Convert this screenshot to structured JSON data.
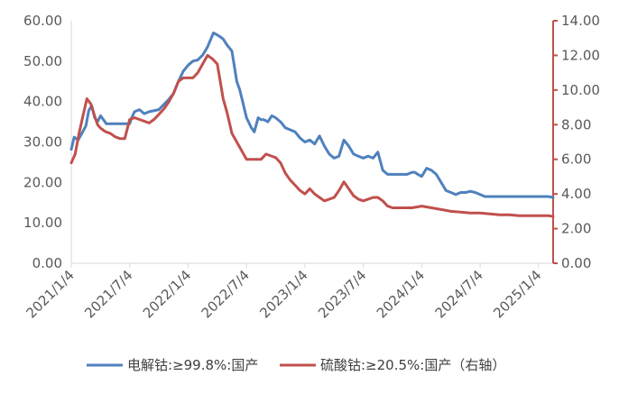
{
  "chart_data": {
    "type": "line",
    "title": "",
    "xlabel": "",
    "ylabel": "",
    "x_tick_labels": [
      "2021/1/4",
      "2021/7/4",
      "2022/1/4",
      "2022/7/4",
      "2023/1/4",
      "2023/7/4",
      "2024/1/4",
      "2024/7/4",
      "2025/1/4"
    ],
    "x_range": [
      0,
      49.5
    ],
    "y_left": {
      "ylim": [
        0,
        60
      ],
      "ticks": [
        "0.00",
        "10.00",
        "20.00",
        "30.00",
        "40.00",
        "50.00",
        "60.00"
      ],
      "color": "#404040"
    },
    "y_right": {
      "ylim": [
        0,
        14
      ],
      "ticks": [
        "0.00",
        "2.00",
        "4.00",
        "6.00",
        "8.00",
        "10.00",
        "12.00",
        "14.00"
      ],
      "color": "#C0504D"
    },
    "legend_position": "bottom",
    "series": [
      {
        "name": "电解钴:≥99.8%:国产",
        "axis": "left",
        "color": "#4F81BD",
        "x": [
          0,
          0.3,
          0.7,
          1.1,
          1.5,
          1.8,
          2.1,
          2.4,
          2.7,
          3.0,
          3.3,
          3.6,
          4.0,
          5.0,
          6.0,
          6.2,
          6.5,
          7.0,
          7.5,
          8.0,
          9.0,
          10.0,
          10.5,
          11.0,
          11.5,
          12.0,
          12.5,
          13.0,
          13.5,
          14.0,
          14.6,
          15.0,
          15.3,
          15.6,
          16.0,
          16.5,
          17.0,
          17.3,
          17.6,
          18.0,
          18.5,
          18.8,
          19.2,
          19.5,
          19.8,
          20.2,
          20.6,
          21.0,
          21.5,
          22.0,
          22.5,
          23.0,
          23.5,
          24.0,
          24.5,
          25.0,
          25.5,
          26.0,
          26.5,
          27.0,
          27.5,
          28.0,
          28.5,
          29.0,
          29.5,
          30.0,
          30.5,
          31.0,
          31.5,
          32.0,
          32.5,
          33.0,
          33.5,
          34.0,
          34.5,
          35.0,
          35.3,
          35.6,
          36.0,
          36.5,
          37.0,
          37.5,
          38.0,
          38.5,
          39.0,
          39.5,
          40.0,
          40.5,
          41.0,
          41.5,
          42.0,
          42.5,
          43.0,
          43.5,
          44.0,
          44.5,
          45.0,
          45.5,
          46.0,
          46.5,
          47.0,
          47.5,
          48.0,
          48.5,
          49.0,
          49.5
        ],
        "values": [
          28.2,
          31.2,
          30.5,
          32.2,
          34.0,
          37.8,
          39.0,
          36.0,
          35.0,
          36.5,
          35.5,
          34.5,
          34.5,
          34.5,
          34.5,
          36.0,
          37.5,
          38.0,
          37.0,
          37.5,
          38.0,
          40.5,
          42.0,
          45.0,
          47.5,
          49.0,
          50.0,
          50.3,
          51.5,
          53.5,
          57.0,
          56.5,
          56.0,
          55.5,
          54.0,
          52.5,
          45.0,
          43.0,
          40.0,
          36.0,
          33.5,
          32.5,
          36.0,
          35.5,
          35.5,
          35.0,
          36.5,
          36.0,
          35.0,
          33.5,
          33.0,
          32.5,
          31.0,
          30.0,
          30.5,
          29.5,
          31.5,
          29.0,
          27.0,
          26.0,
          26.5,
          30.5,
          29.0,
          27.0,
          26.5,
          26.0,
          26.5,
          26.0,
          27.5,
          23.0,
          22.0,
          22.0,
          22.0,
          22.0,
          22.0,
          22.5,
          22.5,
          22.0,
          21.5,
          23.5,
          23.0,
          22.0,
          20.0,
          18.0,
          17.5,
          17.0,
          17.5,
          17.5,
          17.8,
          17.5,
          17.0,
          16.5,
          16.5,
          16.5,
          16.5,
          16.5,
          16.5,
          16.5,
          16.5,
          16.5,
          16.5,
          16.5,
          16.5,
          16.5,
          16.5,
          16.3
        ]
      },
      {
        "name": "硫酸钴:≥20.5%:国产（右轴）",
        "axis": "right",
        "color": "#C0504D",
        "x": [
          0,
          0.4,
          0.8,
          1.2,
          1.6,
          2.0,
          2.4,
          2.7,
          3.0,
          3.5,
          4.0,
          4.5,
          5.0,
          5.5,
          6.0,
          6.5,
          7.0,
          7.5,
          8.0,
          8.5,
          9.0,
          9.5,
          10.0,
          10.5,
          11.0,
          11.5,
          12.0,
          12.5,
          13.0,
          13.5,
          14.0,
          14.5,
          15.0,
          15.3,
          15.6,
          16.0,
          16.5,
          17.0,
          17.5,
          18.0,
          18.5,
          19.0,
          19.5,
          20.0,
          20.5,
          21.0,
          21.5,
          22.0,
          22.5,
          23.0,
          23.5,
          24.0,
          24.5,
          25.0,
          25.5,
          26.0,
          26.5,
          27.0,
          27.5,
          28.0,
          28.5,
          29.0,
          29.5,
          30.0,
          30.5,
          31.0,
          31.5,
          32.0,
          32.5,
          33.0,
          33.5,
          34.0,
          35.0,
          36.0,
          37.0,
          38.0,
          39.0,
          40.0,
          41.0,
          42.0,
          43.0,
          44.0,
          45.0,
          46.0,
          47.0,
          48.0,
          49.0,
          49.5
        ],
        "values": [
          5.8,
          6.3,
          7.5,
          8.5,
          9.5,
          9.2,
          8.5,
          8.0,
          7.8,
          7.6,
          7.5,
          7.3,
          7.2,
          7.2,
          8.3,
          8.4,
          8.3,
          8.2,
          8.1,
          8.3,
          8.6,
          8.9,
          9.3,
          9.8,
          10.5,
          10.7,
          10.7,
          10.7,
          11.0,
          11.5,
          12.0,
          11.8,
          11.5,
          10.5,
          9.5,
          8.7,
          7.5,
          7.0,
          6.5,
          6.0,
          6.0,
          6.0,
          6.0,
          6.3,
          6.2,
          6.1,
          5.8,
          5.2,
          4.8,
          4.5,
          4.2,
          4.0,
          4.3,
          4.0,
          3.8,
          3.6,
          3.7,
          3.8,
          4.2,
          4.7,
          4.3,
          3.9,
          3.7,
          3.6,
          3.7,
          3.8,
          3.8,
          3.6,
          3.3,
          3.2,
          3.2,
          3.2,
          3.2,
          3.3,
          3.2,
          3.1,
          3.0,
          2.95,
          2.9,
          2.9,
          2.85,
          2.8,
          2.8,
          2.75,
          2.75,
          2.75,
          2.75,
          2.7
        ]
      }
    ]
  }
}
